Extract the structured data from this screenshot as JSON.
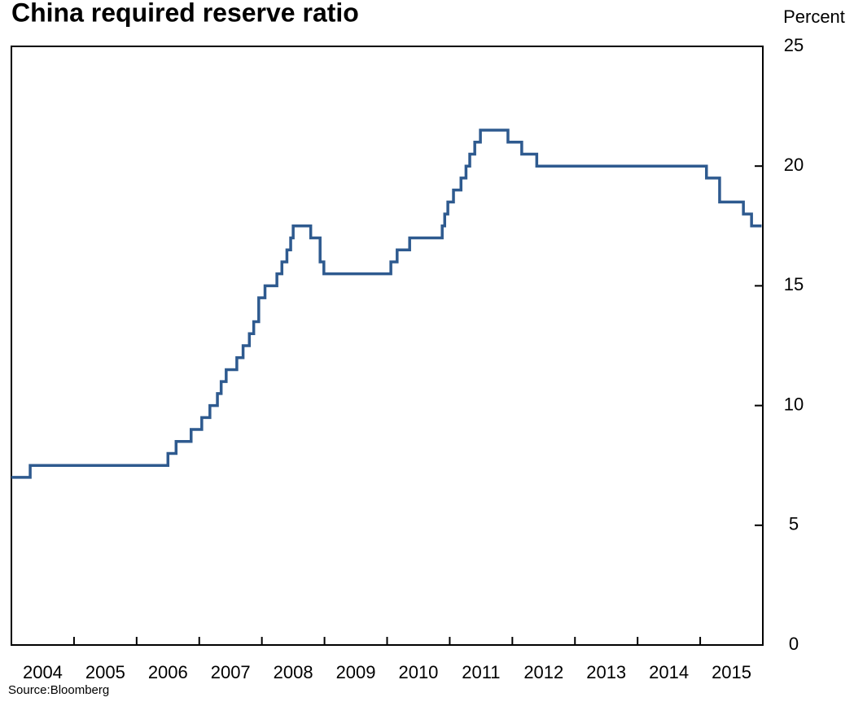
{
  "chart_data": {
    "type": "line",
    "title": "China required reserve ratio",
    "y_label": "Percent",
    "source": "Source:Bloomberg",
    "step": "post",
    "color": "#2e5a8f",
    "x": [
      2004.0,
      2004.3,
      2006.5,
      2006.63,
      2006.87,
      2007.04,
      2007.17,
      2007.29,
      2007.35,
      2007.43,
      2007.6,
      2007.7,
      2007.8,
      2007.87,
      2007.95,
      2008.05,
      2008.24,
      2008.32,
      2008.4,
      2008.46,
      2008.5,
      2008.78,
      2008.93,
      2008.99,
      2010.06,
      2010.16,
      2010.36,
      2010.88,
      2010.92,
      2010.97,
      2011.06,
      2011.18,
      2011.26,
      2011.32,
      2011.4,
      2011.49,
      2011.93,
      2012.15,
      2012.39,
      2015.1,
      2015.31,
      2015.69,
      2015.82,
      2015.98
    ],
    "values": [
      7,
      7.5,
      8,
      8.5,
      9,
      9.5,
      10,
      10.5,
      11,
      11.5,
      12,
      12.5,
      13,
      13.5,
      14.5,
      15,
      15.5,
      16,
      16.5,
      17,
      17.5,
      17,
      16,
      15.5,
      16,
      16.5,
      17,
      17.5,
      18,
      18.5,
      19,
      19.5,
      20,
      20.5,
      21,
      21.5,
      21,
      20.5,
      20,
      19.5,
      18.5,
      18,
      17.5,
      17.5
    ],
    "xlim": [
      2004,
      2016
    ],
    "xticks": [
      {
        "value": 2004.5,
        "label": "2004"
      },
      {
        "value": 2005.5,
        "label": "2005"
      },
      {
        "value": 2006.5,
        "label": "2006"
      },
      {
        "value": 2007.5,
        "label": "2007"
      },
      {
        "value": 2008.5,
        "label": "2008"
      },
      {
        "value": 2009.5,
        "label": "2009"
      },
      {
        "value": 2010.5,
        "label": "2010"
      },
      {
        "value": 2011.5,
        "label": "2011"
      },
      {
        "value": 2012.5,
        "label": "2012"
      },
      {
        "value": 2013.5,
        "label": "2013"
      },
      {
        "value": 2014.5,
        "label": "2014"
      },
      {
        "value": 2015.5,
        "label": "2015"
      }
    ],
    "xtick_marks": [
      2005,
      2006,
      2007,
      2008,
      2009,
      2010,
      2011,
      2012,
      2013,
      2014,
      2015
    ],
    "ylim": [
      0,
      25
    ],
    "yticks": [
      0,
      5,
      10,
      15,
      20,
      25
    ],
    "grid": false
  }
}
